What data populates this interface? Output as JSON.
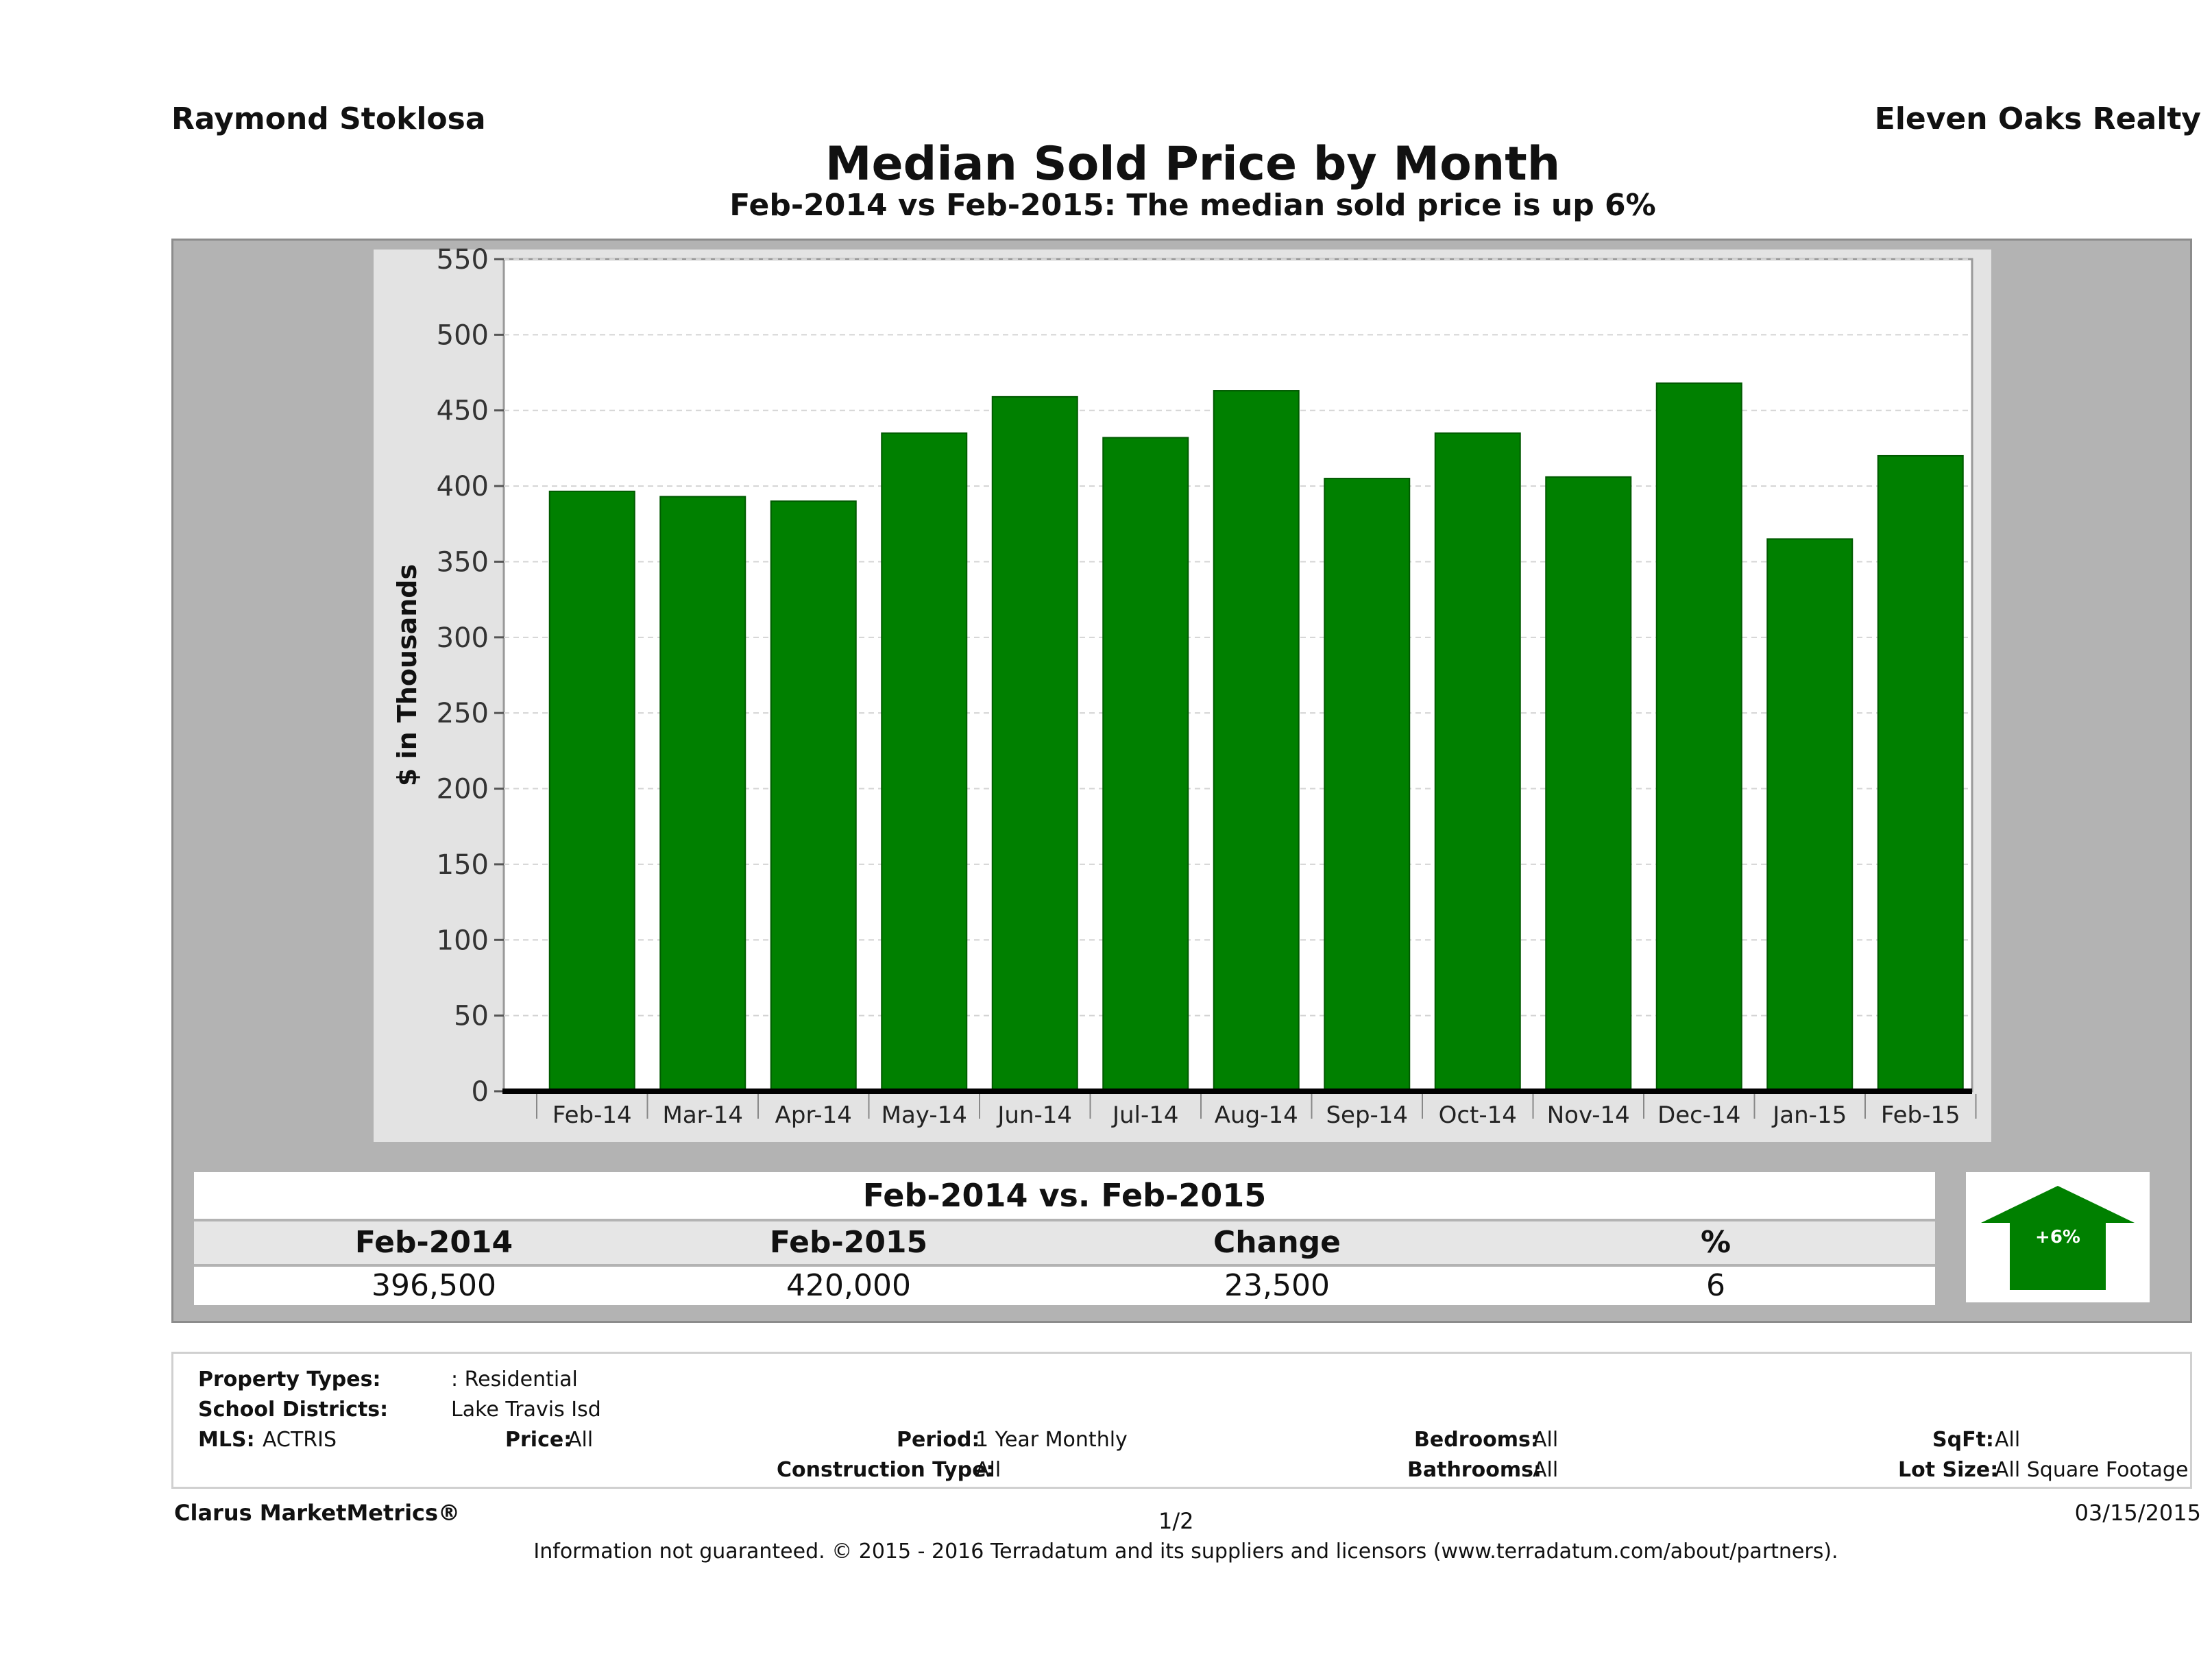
{
  "header": {
    "agent": "Raymond Stoklosa",
    "brokerage": "Eleven Oaks Realty",
    "title": "Median Sold Price by Month",
    "subtitle": "Feb-2014 vs Feb-2015: The median sold price is up 6%"
  },
  "chart_data": {
    "type": "bar",
    "title": "Median Sold Price by Month",
    "subtitle": "Feb-2014 vs Feb-2015: The median sold price is up 6%",
    "ylabel": "$ in Thousands",
    "xlabel": "",
    "ylim": [
      0,
      550
    ],
    "yticks": [
      "0",
      "50",
      "100",
      "150",
      "200",
      "250",
      "300",
      "350",
      "400",
      "450",
      "500",
      "550"
    ],
    "categories": [
      "Feb-14",
      "Mar-14",
      "Apr-14",
      "May-14",
      "Jun-14",
      "Jul-14",
      "Aug-14",
      "Sep-14",
      "Oct-14",
      "Nov-14",
      "Dec-14",
      "Jan-15",
      "Feb-15"
    ],
    "values": [
      396.5,
      393,
      390,
      435,
      459,
      432,
      463,
      405,
      435,
      406,
      468,
      365,
      420
    ],
    "grid": true,
    "bar_color": "#008000"
  },
  "summary": {
    "title": "Feb-2014 vs. Feb-2015",
    "headers": [
      "Feb-2014",
      "Feb-2015",
      "Change",
      "%"
    ],
    "values": [
      "396,500",
      "420,000",
      "23,500",
      "6"
    ],
    "badge": "+6%",
    "badge_color": "#008000"
  },
  "criteria": {
    "property_types_label": "Property Types:",
    "property_types_value": ": Residential",
    "school_districts_label": "School Districts:",
    "school_districts_value": "Lake Travis Isd",
    "mls_label": "MLS:",
    "mls_value": "ACTRIS",
    "price_label": "Price:",
    "price_value": "All",
    "period_label": "Period:",
    "period_value": "1 Year Monthly",
    "construction_label": "Construction Type:",
    "construction_value": "All",
    "bedrooms_label": "Bedrooms:",
    "bedrooms_value": "All",
    "bathrooms_label": "Bathrooms:",
    "bathrooms_value": "All",
    "sqft_label": "SqFt:",
    "sqft_value": "All",
    "lotsize_label": "Lot Size:",
    "lotsize_value": "All Square Footage"
  },
  "footer": {
    "brand": "Clarus MarketMetrics®",
    "page": "1/2",
    "date": "03/15/2015",
    "disclaimer": "Information not guaranteed. © 2015 - 2016 Terradatum and its suppliers and licensors (www.terradatum.com/about/partners)."
  }
}
